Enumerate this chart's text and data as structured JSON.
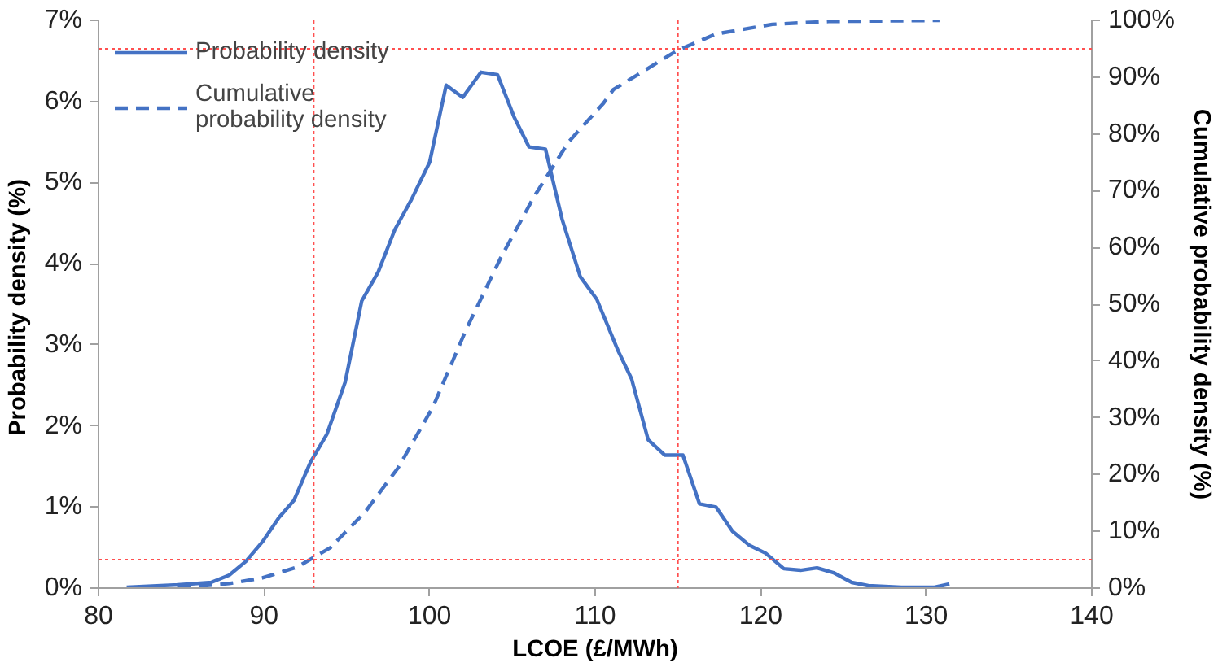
{
  "chart_data": {
    "type": "line",
    "xlabel": "LCOE (£/MWh)",
    "ylabel": "Probability  density (%)",
    "y2label": "Cumulative probability density (%)",
    "xlim": [
      80,
      140
    ],
    "xticks": [
      80,
      90,
      100,
      110,
      120,
      130,
      140
    ],
    "ylim": [
      0,
      7
    ],
    "yticks": [
      {
        "value": 0,
        "label": "0%"
      },
      {
        "value": 1,
        "label": "1%"
      },
      {
        "value": 2,
        "label": "2%"
      },
      {
        "value": 3,
        "label": "3%"
      },
      {
        "value": 4,
        "label": "4%"
      },
      {
        "value": 5,
        "label": "5%"
      },
      {
        "value": 6,
        "label": "6%"
      },
      {
        "value": 7,
        "label": "7%"
      }
    ],
    "y2lim": [
      0,
      100
    ],
    "y2ticks": [
      {
        "value": 0,
        "label": "0%"
      },
      {
        "value": 10,
        "label": "10%"
      },
      {
        "value": 20,
        "label": "20%"
      },
      {
        "value": 30,
        "label": "30%"
      },
      {
        "value": 40,
        "label": "40%"
      },
      {
        "value": 50,
        "label": "50%"
      },
      {
        "value": 60,
        "label": "60%"
      },
      {
        "value": 70,
        "label": "70%"
      },
      {
        "value": 80,
        "label": "80%"
      },
      {
        "value": 90,
        "label": "90%"
      },
      {
        "value": 100,
        "label": "100%"
      }
    ],
    "grid": false,
    "legend": "top left",
    "series": [
      {
        "name": "Probability density",
        "color": "#4472c4",
        "line_style": "solid",
        "x": [
          81.7,
          84.8,
          86.8,
          87.9,
          88.9,
          89.9,
          90.9,
          91.8,
          92.8,
          93.8,
          94.9,
          95.9,
          96.9,
          97.9,
          98.9,
          100,
          101,
          102,
          103.1,
          104.1,
          105.1,
          106,
          107,
          108,
          109.1,
          110.1,
          111.4,
          112.2,
          113.2,
          114.2,
          115.3,
          116.3,
          117.3,
          118.3,
          119.3,
          120.3,
          121.4,
          122.4,
          123.4,
          124.4,
          125.5,
          126.5,
          128.5,
          130.5,
          131.4
        ],
        "values": [
          0.01,
          0.04,
          0.07,
          0.16,
          0.33,
          0.57,
          0.87,
          1.08,
          1.55,
          1.9,
          2.54,
          3.54,
          3.9,
          4.42,
          4.79,
          5.25,
          6.2,
          6.05,
          6.36,
          6.33,
          5.81,
          5.44,
          5.41,
          4.55,
          3.84,
          3.56,
          2.92,
          2.58,
          1.83,
          1.64,
          1.64,
          1.04,
          1.0,
          0.7,
          0.53,
          0.43,
          0.24,
          0.22,
          0.25,
          0.19,
          0.07,
          0.03,
          0.01,
          0.01,
          0.05
        ]
      },
      {
        "name": "Cumulative probability density",
        "color": "#4472c4",
        "line_style": "dashed",
        "axis": "y2",
        "x": [
          84.8,
          87.9,
          89.9,
          92,
          94,
          96.1,
          98.1,
          100.2,
          102.2,
          104.3,
          106.3,
          108.4,
          110.5,
          111.1,
          114.9,
          117.3,
          120.7,
          124.1,
          130.8
        ],
        "values": [
          0,
          0.8,
          1.8,
          3.7,
          7.1,
          13.4,
          21.2,
          31.9,
          45.5,
          58.2,
          68.9,
          78.6,
          85.4,
          87.8,
          94.6,
          97.6,
          99.3,
          99.8,
          100
        ]
      }
    ],
    "ref_lines": [
      {
        "axis": "x",
        "value": 115,
        "color": "#ff5050",
        "line_style": "dotted"
      },
      {
        "axis": "x",
        "value": 93,
        "color": "#ff5050",
        "line_style": "dotted"
      },
      {
        "axis": "y2",
        "value": 95,
        "color": "#ff5050",
        "line_style": "dotted"
      },
      {
        "axis": "y2",
        "value": 5,
        "color": "#ff5050",
        "line_style": "dotted"
      }
    ]
  }
}
